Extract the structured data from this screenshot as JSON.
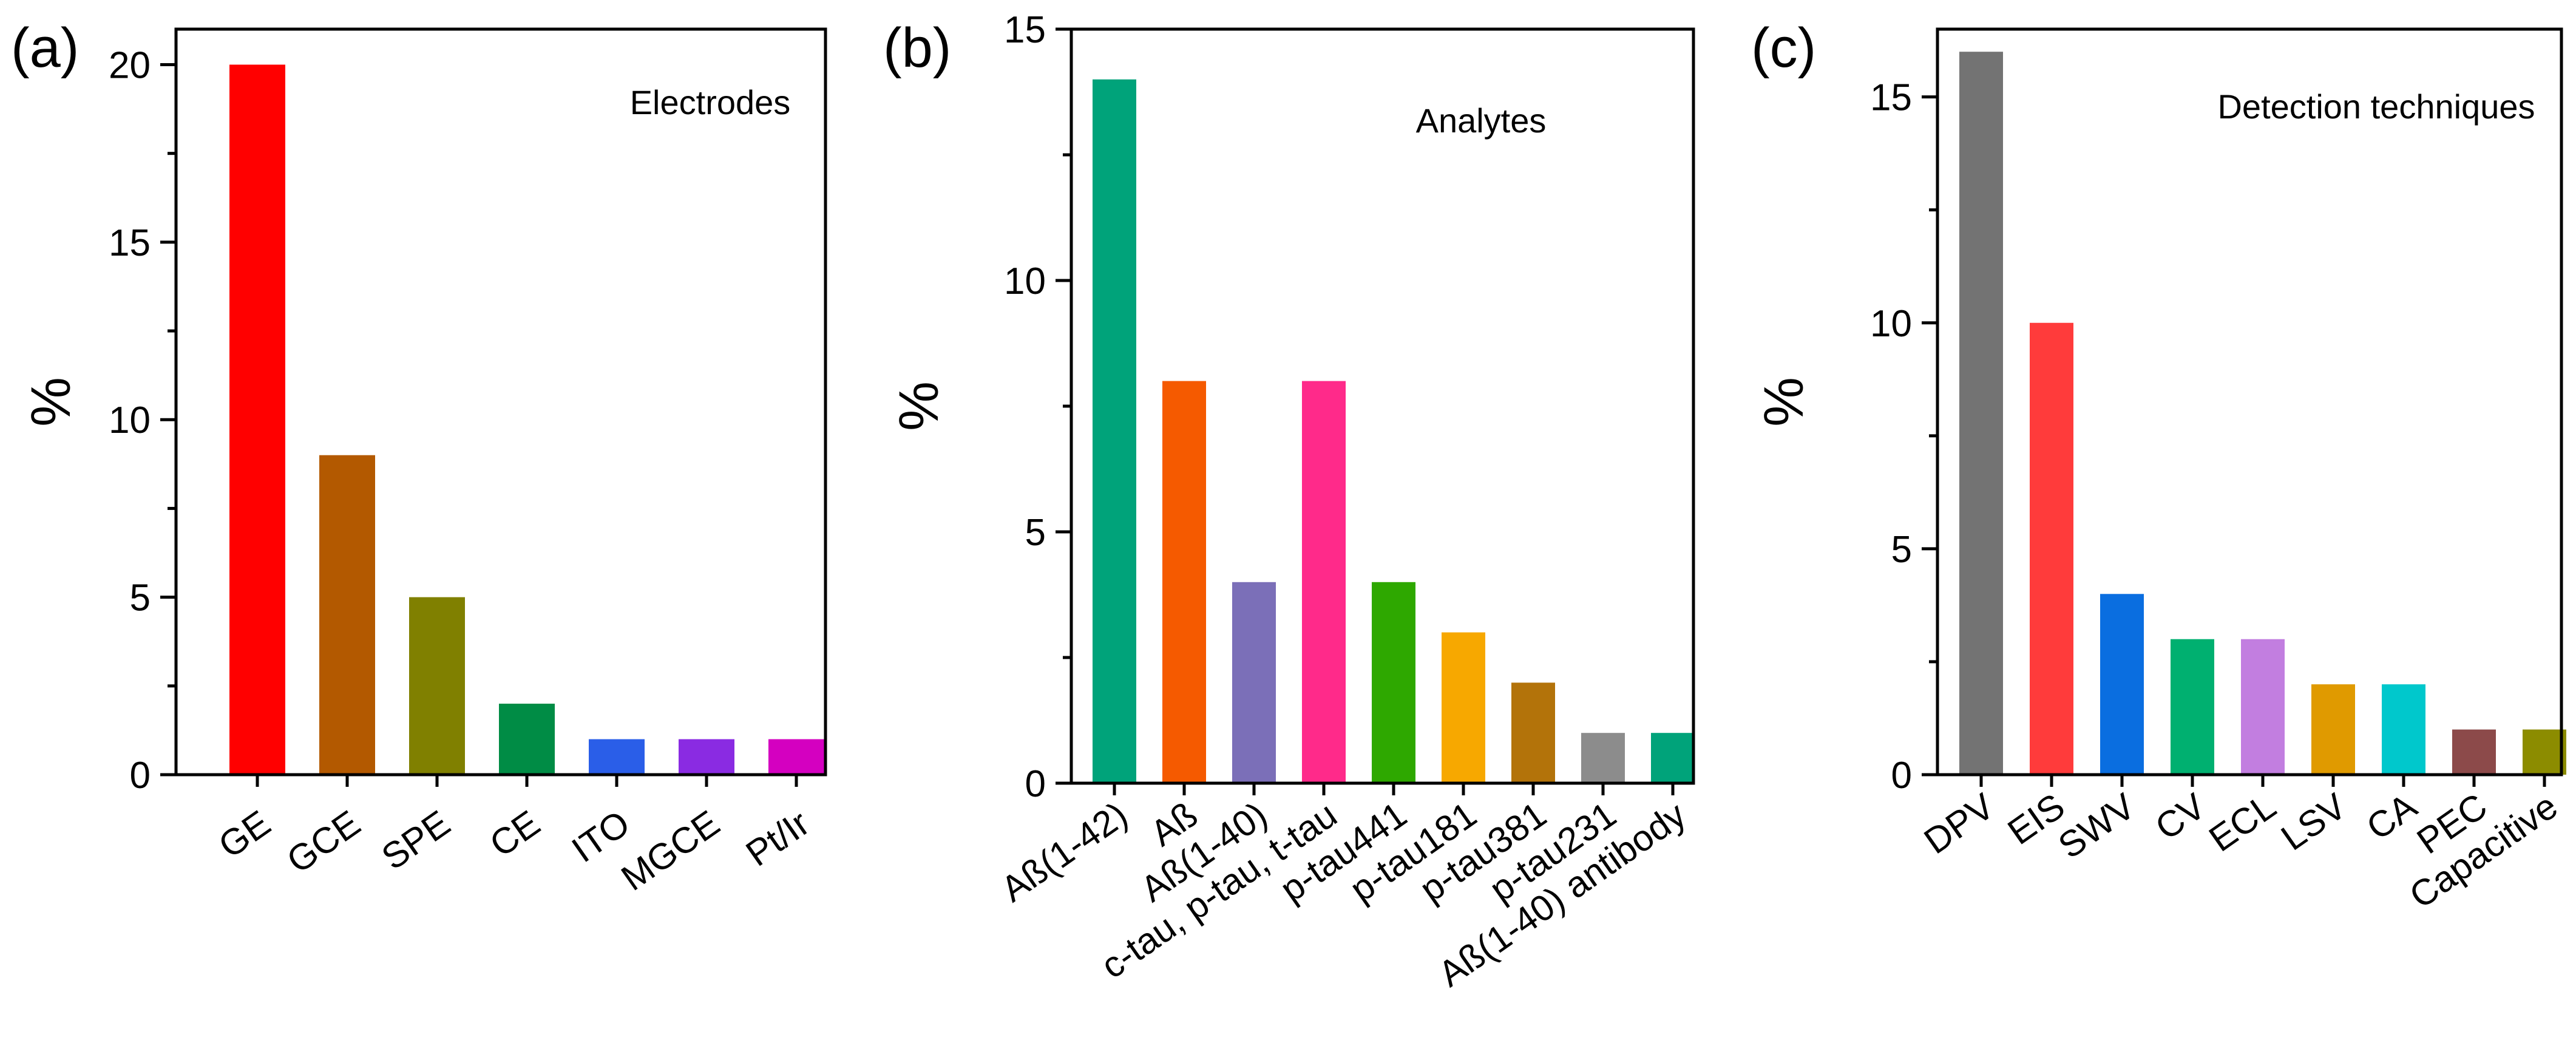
{
  "chart_data": [
    {
      "type": "bar",
      "panel_label": "(a)",
      "title": "Electrodes",
      "xlabel": "",
      "ylabel": "%",
      "ylim": [
        0,
        21
      ],
      "yticks": [
        0,
        5,
        10,
        15,
        20
      ],
      "categories": [
        "GE",
        "GCE",
        "SPE",
        "CE",
        "ITO",
        "MGCE",
        "Pt/Ir"
      ],
      "values": [
        20,
        9,
        5,
        2,
        1,
        1,
        1
      ],
      "colors": [
        "#ff0000",
        "#b35900",
        "#808000",
        "#008c45",
        "#2a5ee8",
        "#8a2be2",
        "#d400c0"
      ]
    },
    {
      "type": "bar",
      "panel_label": "(b)",
      "title": "Analytes",
      "xlabel": "",
      "ylabel": "%",
      "ylim": [
        0,
        15
      ],
      "yticks": [
        0,
        5,
        10,
        15
      ],
      "categories": [
        "Aß(1-42)",
        "Aß",
        "Aß(1-40)",
        "c-tau, p-tau, t-tau",
        "p-tau441",
        "p-tau181",
        "p-tau381",
        "p-tau231",
        "Aß(1-40) antibody"
      ],
      "values": [
        14,
        8,
        4,
        8,
        4,
        3,
        2,
        1,
        1
      ],
      "colors": [
        "#00a37a",
        "#f55a00",
        "#7b6fb8",
        "#ff2a8a",
        "#2ea800",
        "#f7a800",
        "#b3730a",
        "#8c8c8c",
        "#00a37a"
      ]
    },
    {
      "type": "bar",
      "panel_label": "(c)",
      "title": "Detection techniques",
      "xlabel": "",
      "ylabel": "%",
      "ylim": [
        0,
        16.5
      ],
      "yticks": [
        0,
        5,
        10,
        15
      ],
      "categories": [
        "DPV",
        "EIS",
        "SWV",
        "CV",
        "ECL",
        "LSV",
        "CA",
        "PEC",
        "Capacitive"
      ],
      "values": [
        16,
        10,
        4,
        3,
        3,
        2,
        2,
        1,
        1
      ],
      "colors": [
        "#737373",
        "#ff3b3b",
        "#0a6ee0",
        "#00b070",
        "#c27ee0",
        "#e09a00",
        "#00c8cc",
        "#8c4a4a",
        "#8c8c00"
      ]
    }
  ]
}
